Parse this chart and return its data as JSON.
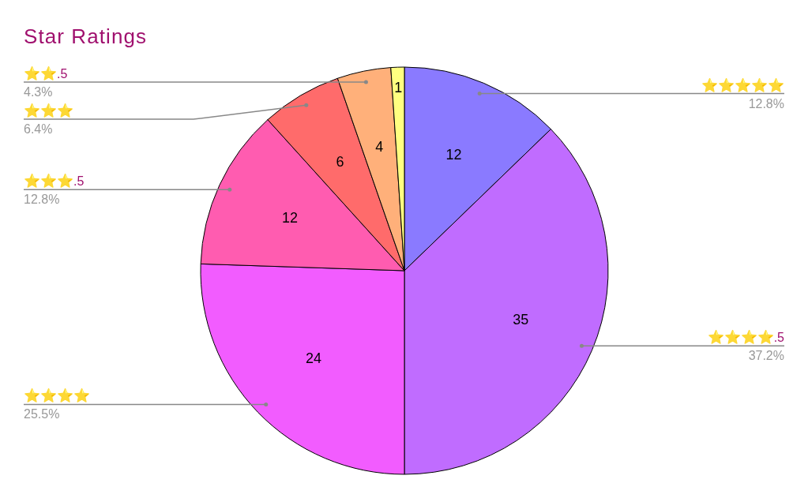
{
  "chart_data": {
    "type": "pie",
    "title": "Star Ratings",
    "categories": [
      "⭐⭐⭐⭐⭐",
      "⭐⭐⭐⭐.5",
      "⭐⭐⭐⭐",
      "⭐⭐⭐.5",
      "⭐⭐⭐",
      "⭐⭐.5",
      null
    ],
    "values": [
      12,
      35,
      24,
      12,
      6,
      4,
      1
    ],
    "colors": [
      "#8a7aff",
      "#c06cff",
      "#f25cff",
      "#ff5cb0",
      "#ff6b6b",
      "#ffb07a",
      "#ffff80"
    ],
    "annotations": [
      "12.8%",
      "37.2%",
      "25.5%",
      "12.8%",
      "6.4%",
      "4.3%"
    ],
    "data_labels": true
  }
}
